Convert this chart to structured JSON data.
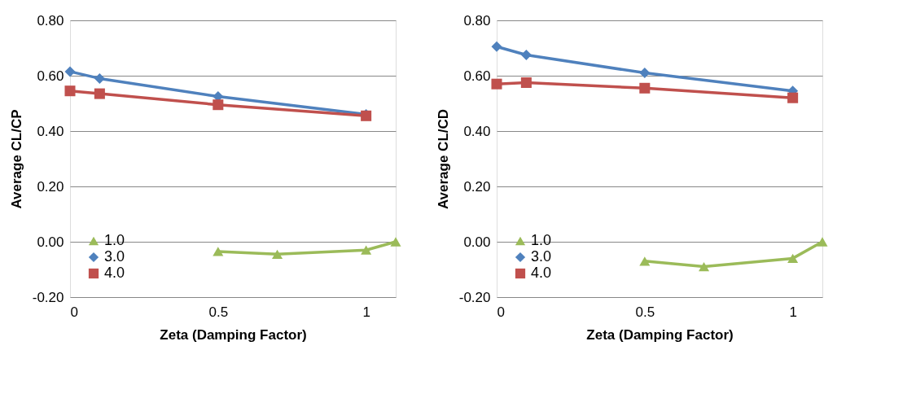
{
  "chart_data": [
    {
      "type": "line",
      "xlabel": "Zeta (Damping Factor)",
      "ylabel": "Average CL/CP",
      "xlim": [
        0,
        1.1
      ],
      "xticks": [
        0,
        0.5,
        1
      ],
      "ylim": [
        -0.2,
        0.8
      ],
      "yticks": [
        {
          "value": -0.2,
          "label": "-0.20"
        },
        {
          "value": 0,
          "label": "0.00"
        },
        {
          "value": 0.2,
          "label": "0.20"
        },
        {
          "value": 0.4,
          "label": "0.40"
        },
        {
          "value": 0.6,
          "label": "0.60"
        },
        {
          "value": 0.8,
          "label": "0.80"
        }
      ],
      "grid": "y",
      "legend": "bottom left",
      "series": [
        {
          "name": "1.0",
          "color": "#9bbb59",
          "marker": "triangle",
          "x": [
            0.5,
            0.7,
            1,
            1.1
          ],
          "values": [
            -0.035,
            -0.045,
            -0.03,
            0.0
          ]
        },
        {
          "name": "3.0",
          "color": "#4f81bd",
          "marker": "diamond",
          "x": [
            0,
            0.1,
            0.5,
            1
          ],
          "values": [
            0.615,
            0.59,
            0.525,
            0.46
          ]
        },
        {
          "name": "4.0",
          "color": "#c0504d",
          "marker": "square",
          "x": [
            0,
            0.1,
            0.5,
            1
          ],
          "values": [
            0.545,
            0.535,
            0.495,
            0.455
          ]
        }
      ]
    },
    {
      "type": "line",
      "xlabel": "Zeta (Damping Factor)",
      "ylabel": "Average CL/CD",
      "xlim": [
        0,
        1.1
      ],
      "xticks": [
        0,
        0.5,
        1
      ],
      "ylim": [
        -0.2,
        0.8
      ],
      "yticks": [
        {
          "value": -0.2,
          "label": "-0.20"
        },
        {
          "value": 0,
          "label": "0.00"
        },
        {
          "value": 0.2,
          "label": "0.20"
        },
        {
          "value": 0.4,
          "label": "0.40"
        },
        {
          "value": 0.6,
          "label": "0.60"
        },
        {
          "value": 0.8,
          "label": "0.80"
        }
      ],
      "grid": "y",
      "legend": "bottom left",
      "series": [
        {
          "name": "1.0",
          "color": "#9bbb59",
          "marker": "triangle",
          "x": [
            0.5,
            0.7,
            1,
            1.1
          ],
          "values": [
            -0.07,
            -0.09,
            -0.06,
            0.0
          ]
        },
        {
          "name": "3.0",
          "color": "#4f81bd",
          "marker": "diamond",
          "x": [
            0,
            0.1,
            0.5,
            1
          ],
          "values": [
            0.705,
            0.675,
            0.61,
            0.545
          ]
        },
        {
          "name": "4.0",
          "color": "#c0504d",
          "marker": "square",
          "x": [
            0,
            0.1,
            0.5,
            1
          ],
          "values": [
            0.57,
            0.575,
            0.555,
            0.52
          ]
        }
      ]
    }
  ]
}
